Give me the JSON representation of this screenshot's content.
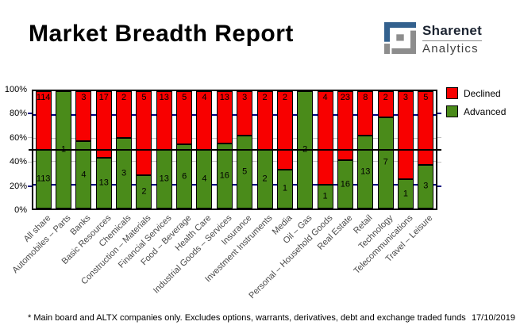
{
  "header": {
    "title": "Market Breadth Report",
    "logo": {
      "name": "Sharenet",
      "sub": "Analytics",
      "blue": "#33618e",
      "gray": "#8d8d8d"
    }
  },
  "chart_data": {
    "type": "bar",
    "stacked": true,
    "normalized": "percent",
    "categories": [
      "All share",
      "Automobiles – Parts",
      "Banks",
      "Basic Resources",
      "Chemicals",
      "Construction – Materials",
      "Financial Services",
      "Food – Beverage",
      "Health Care",
      "Industrial Goods – Services",
      "Insurance",
      "Investment Instruments",
      "Media",
      "Oil – Gas",
      "Personal – Household Goods",
      "Real Estate",
      "Retail",
      "Technology",
      "Telecommunications",
      "Travel – Leisure"
    ],
    "series": [
      {
        "name": "Declined",
        "color": "#f80000",
        "values": [
          114,
          0,
          3,
          17,
          2,
          5,
          13,
          5,
          4,
          13,
          3,
          2,
          2,
          0,
          4,
          23,
          8,
          2,
          3,
          5
        ]
      },
      {
        "name": "Advanced",
        "color": "#4a8b1a",
        "values": [
          113,
          1,
          4,
          13,
          3,
          2,
          13,
          6,
          4,
          16,
          5,
          2,
          1,
          2,
          1,
          16,
          13,
          7,
          1,
          3
        ]
      }
    ],
    "y_axis": {
      "range": [
        0,
        100
      ],
      "ticks": [
        {
          "label": "100%",
          "pct": 100
        },
        {
          "label": "80%",
          "pct": 80
        },
        {
          "label": "60%",
          "pct": 60
        },
        {
          "label": "40%",
          "pct": 40
        },
        {
          "label": "20%",
          "pct": 20
        },
        {
          "label": "0%",
          "pct": 0
        }
      ]
    },
    "gridlines": [
      {
        "pct": 80,
        "color": "#000080",
        "thickness": 2
      },
      {
        "pct": 60,
        "color": "#c0c0c0",
        "thickness": 1
      },
      {
        "pct": 40,
        "color": "#c0c0c0",
        "thickness": 1
      },
      {
        "pct": 20,
        "color": "#000080",
        "thickness": 2
      }
    ],
    "fifty_pct_line_color": "#000000",
    "legend_position": "top-right",
    "grid": true
  },
  "footer": {
    "note": "* Main board and ALTX companies only. Excludes options, warrants, derivatives, debt and exchange traded funds",
    "date": "17/10/2019"
  }
}
